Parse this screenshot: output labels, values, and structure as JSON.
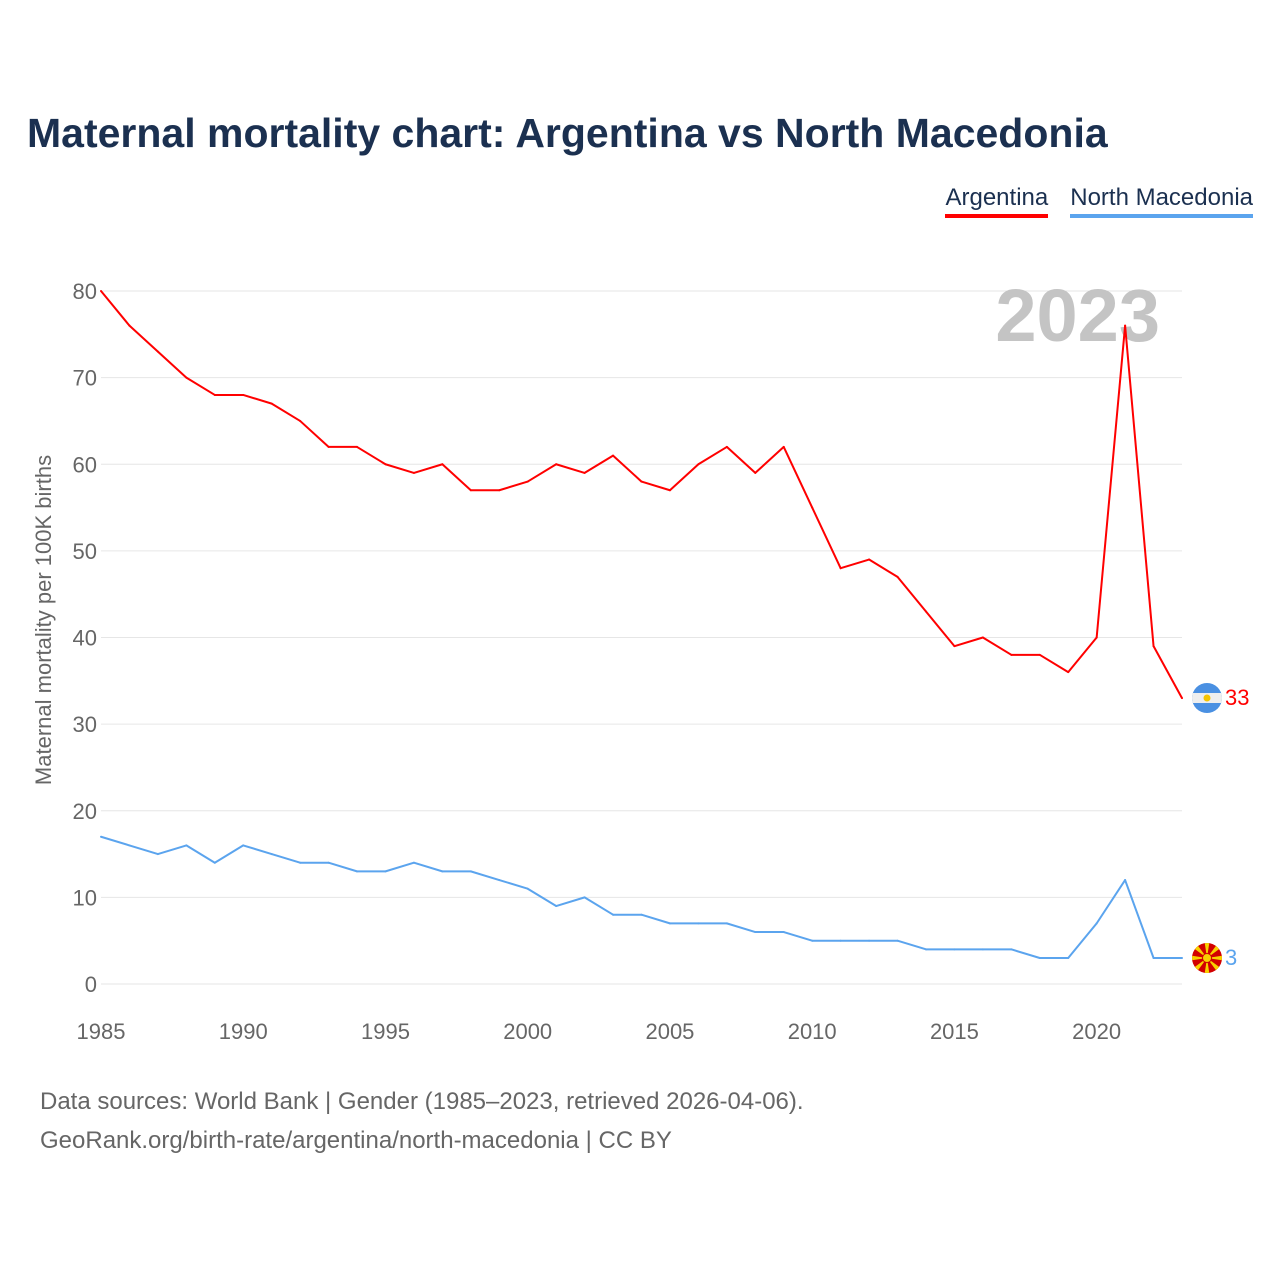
{
  "title": "Maternal mortality chart: Argentina vs North Macedonia",
  "legend": [
    {
      "label": "Argentina",
      "color": "#ff0000"
    },
    {
      "label": "North Macedonia",
      "color": "#5ba4ee"
    }
  ],
  "year_watermark": "2023",
  "footer": {
    "line1": "Data sources: World Bank | Gender (1985–2023, retrieved 2026-04-06).",
    "line2": "GeoRank.org/birth-rate/argentina/north-macedonia | CC BY"
  },
  "chart_data": {
    "type": "line",
    "title": "Maternal mortality chart: Argentina vs North Macedonia",
    "xlabel": "",
    "ylabel": "Maternal mortality per 100K births",
    "xlim": [
      1985,
      2023
    ],
    "ylim": [
      0,
      80
    ],
    "xticks": [
      "1985",
      "1990",
      "1995",
      "2000",
      "2005",
      "2010",
      "2015",
      "2020"
    ],
    "yticks": [
      "0",
      "10",
      "20",
      "30",
      "40",
      "50",
      "60",
      "70",
      "80"
    ],
    "grid": true,
    "legend_position": "top-right",
    "x": [
      1985,
      1986,
      1987,
      1988,
      1989,
      1990,
      1991,
      1992,
      1993,
      1994,
      1995,
      1996,
      1997,
      1998,
      1999,
      2000,
      2001,
      2002,
      2003,
      2004,
      2005,
      2006,
      2007,
      2008,
      2009,
      2010,
      2011,
      2012,
      2013,
      2014,
      2015,
      2016,
      2017,
      2018,
      2019,
      2020,
      2021,
      2022,
      2023
    ],
    "series": [
      {
        "name": "Argentina",
        "color": "#ff0000",
        "end_label": "33",
        "values": [
          80,
          76,
          73,
          70,
          68,
          68,
          67,
          65,
          62,
          62,
          60,
          59,
          60,
          57,
          57,
          58,
          60,
          59,
          61,
          58,
          57,
          60,
          62,
          59,
          62,
          55,
          48,
          49,
          47,
          43,
          39,
          40,
          38,
          38,
          36,
          40,
          76,
          39,
          33
        ]
      },
      {
        "name": "North Macedonia",
        "color": "#5ba4ee",
        "end_label": "3",
        "values": [
          17,
          16,
          15,
          16,
          14,
          16,
          15,
          14,
          14,
          13,
          13,
          14,
          13,
          13,
          12,
          11,
          9,
          10,
          8,
          8,
          7,
          7,
          7,
          6,
          6,
          5,
          5,
          5,
          5,
          4,
          4,
          4,
          4,
          3,
          3,
          7,
          12,
          3,
          3
        ]
      }
    ]
  }
}
